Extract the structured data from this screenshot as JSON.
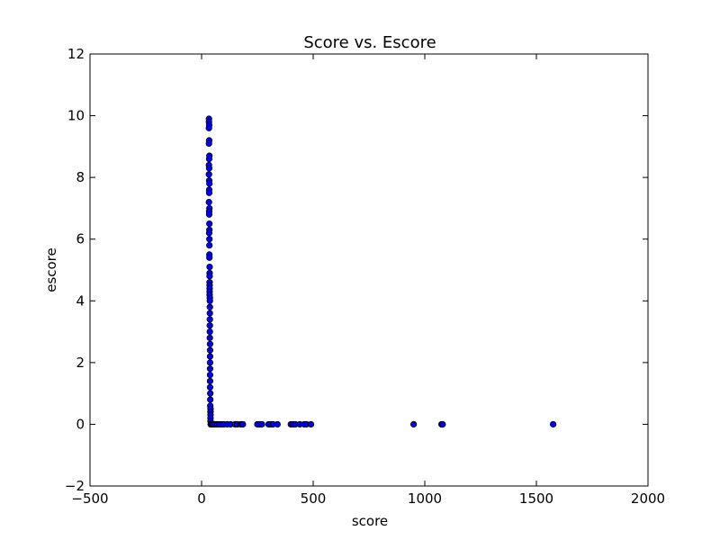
{
  "chart_data": {
    "type": "scatter",
    "title": "Score vs. Escore",
    "xlabel": "score",
    "ylabel": "escore",
    "xlim": [
      -500,
      2000
    ],
    "ylim": [
      -2,
      12
    ],
    "x_ticks": [
      -500,
      0,
      500,
      1000,
      1500,
      2000
    ],
    "y_ticks": [
      -2,
      0,
      2,
      4,
      6,
      8,
      10,
      12
    ],
    "x_tick_labels": [
      "−500",
      "0",
      "500",
      "1000",
      "1500",
      "2000"
    ],
    "y_tick_labels": [
      "−2",
      "0",
      "2",
      "4",
      "6",
      "8",
      "10",
      "12"
    ],
    "grid": false,
    "marker_color": "#0000ff",
    "marker_edge_color": "#000000",
    "series": [
      {
        "x": [
          33,
          33,
          34,
          33,
          34,
          33,
          35,
          34,
          33,
          34,
          33,
          34,
          35,
          34,
          34,
          33,
          35,
          34,
          34,
          35,
          35,
          34,
          35,
          35,
          35,
          35,
          36,
          36,
          36,
          36,
          36,
          36,
          36,
          36,
          37,
          37,
          37,
          37,
          37,
          37,
          37,
          37,
          38,
          38,
          38,
          38,
          38,
          38,
          38,
          38,
          39,
          39,
          39,
          40,
          40,
          40,
          40,
          40,
          41,
          42,
          43,
          45,
          48,
          52,
          58,
          65,
          72,
          80,
          90,
          100,
          115,
          130,
          150,
          160,
          175,
          180,
          185,
          250,
          260,
          270,
          300,
          310,
          320,
          340,
          400,
          410,
          420,
          440,
          460,
          470,
          490,
          950,
          1075,
          1080,
          1575
        ],
        "y": [
          9.9,
          9.8,
          9.7,
          9.6,
          9.2,
          9.1,
          8.7,
          8.6,
          8.4,
          8.3,
          8.1,
          7.9,
          7.8,
          7.6,
          7.5,
          7.2,
          7.0,
          6.9,
          6.8,
          6.5,
          6.3,
          6.2,
          6.0,
          5.8,
          5.5,
          5.4,
          5.1,
          4.9,
          4.8,
          4.6,
          4.5,
          4.4,
          4.3,
          4.2,
          4.1,
          4.0,
          3.8,
          3.6,
          3.4,
          3.2,
          3.0,
          2.8,
          2.6,
          2.4,
          2.2,
          2.0,
          1.8,
          1.6,
          1.4,
          1.2,
          1.0,
          0.8,
          0.6,
          0.5,
          0.4,
          0.3,
          0.2,
          0.1,
          0,
          0,
          0,
          0,
          0,
          0,
          0,
          0,
          0,
          0,
          0,
          0,
          0,
          0,
          0,
          0,
          0,
          0,
          0,
          0,
          0,
          0,
          0,
          0,
          0,
          0,
          0,
          0,
          0,
          0,
          0,
          0,
          0,
          0,
          0,
          0,
          0
        ]
      }
    ]
  }
}
